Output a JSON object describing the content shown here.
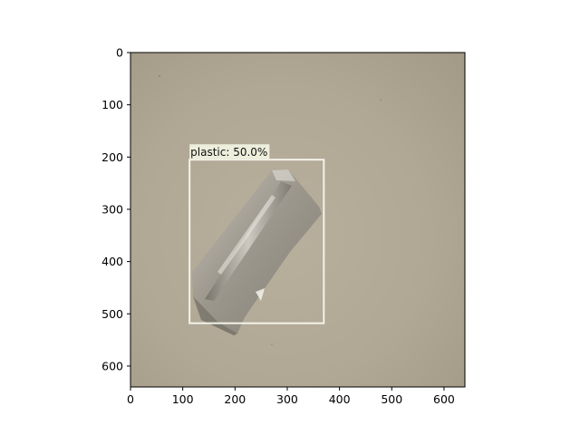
{
  "image": {
    "description_colors": {
      "background": "#b3aa97",
      "frame": "#000000",
      "box": "#f2f2e8",
      "label_bg": "#eeeedd"
    },
    "x_range": [
      0,
      640
    ],
    "y_range": [
      0,
      640
    ],
    "x_ticks": [
      0,
      100,
      200,
      300,
      400,
      500,
      600
    ],
    "y_ticks": [
      0,
      100,
      200,
      300,
      400,
      500,
      600
    ]
  },
  "detection": {
    "label": "plastic: 50.0%",
    "bbox_data": [
      113,
      205,
      370,
      518
    ]
  }
}
